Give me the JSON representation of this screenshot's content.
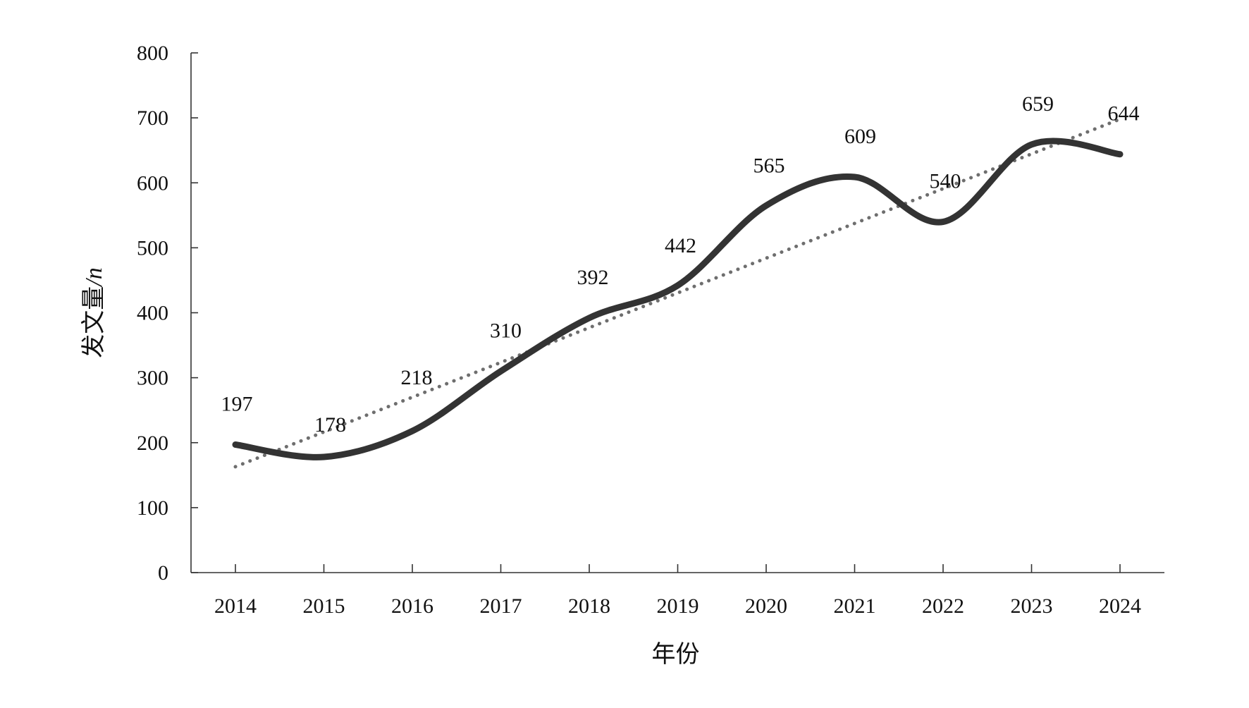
{
  "chart_data": {
    "type": "line",
    "title": "",
    "xlabel": "年份",
    "ylabel": "发文量",
    "ylabel_unit": "/n",
    "categories": [
      "2014",
      "2015",
      "2016",
      "2017",
      "2018",
      "2019",
      "2020",
      "2021",
      "2022",
      "2023",
      "2024"
    ],
    "series": [
      {
        "values": [
          197,
          178,
          218,
          310,
          392,
          442,
          565,
          609,
          540,
          659,
          644
        ],
        "style": "smooth-solid",
        "color": "#333333"
      }
    ],
    "trendline": {
      "type": "linear",
      "style": "dotted",
      "color": "#6e6e6e",
      "start_value": 163,
      "end_value": 698
    },
    "data_labels": [
      "197",
      "178",
      "218",
      "310",
      "392",
      "442",
      "565",
      "609",
      "540",
      "659",
      "644"
    ],
    "ylim": [
      0,
      800
    ],
    "yticks": [
      "0",
      "100",
      "200",
      "300",
      "400",
      "500",
      "600",
      "700",
      "800"
    ],
    "grid": false,
    "legend": "none"
  }
}
